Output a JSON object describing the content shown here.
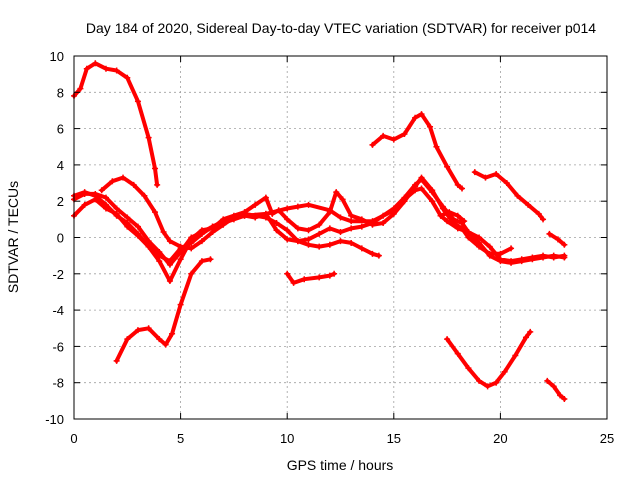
{
  "chart_data": {
    "type": "line",
    "title": "Day 184 of 2020, Sidereal Day-to-day VTEC variation (SDTVAR) for receiver p014",
    "xlabel": "GPS time / hours",
    "ylabel": "SDTVAR / TECUs",
    "xlim": [
      0,
      25
    ],
    "ylim": [
      -10,
      10
    ],
    "xticks": [
      0,
      5,
      10,
      15,
      20,
      25
    ],
    "yticks": [
      -10,
      -8,
      -6,
      -4,
      -2,
      0,
      2,
      4,
      6,
      8,
      10
    ],
    "grid": true,
    "color": "#ff0000",
    "series": [
      {
        "name": "s1",
        "points": [
          [
            0,
            7.8
          ],
          [
            0.3,
            8.2
          ],
          [
            0.6,
            9.3
          ],
          [
            1.0,
            9.6
          ],
          [
            1.5,
            9.3
          ],
          [
            2.0,
            9.2
          ],
          [
            2.5,
            8.8
          ],
          [
            3.0,
            7.5
          ],
          [
            3.5,
            5.5
          ],
          [
            3.8,
            3.8
          ],
          [
            3.9,
            2.9
          ]
        ]
      },
      {
        "name": "s2",
        "points": [
          [
            2.0,
            -6.8
          ],
          [
            2.5,
            -5.6
          ],
          [
            3.0,
            -5.1
          ],
          [
            3.5,
            -5.0
          ],
          [
            4.0,
            -5.6
          ],
          [
            4.3,
            -5.9
          ],
          [
            4.6,
            -5.3
          ],
          [
            5.0,
            -3.7
          ],
          [
            5.5,
            -2.0
          ],
          [
            6.0,
            -1.3
          ],
          [
            6.4,
            -1.2
          ]
        ]
      },
      {
        "name": "s3",
        "points": [
          [
            0,
            1.2
          ],
          [
            0.5,
            1.8
          ],
          [
            1.0,
            2.1
          ],
          [
            1.5,
            1.6
          ],
          [
            2.0,
            1.3
          ],
          [
            2.5,
            0.6
          ],
          [
            3.0,
            0.1
          ],
          [
            3.5,
            -0.5
          ],
          [
            4.0,
            -1.0
          ],
          [
            4.5,
            -1.3
          ],
          [
            5.0,
            -0.6
          ],
          [
            5.5,
            -0.3
          ],
          [
            6.0,
            0.2
          ],
          [
            6.5,
            0.6
          ],
          [
            7.0,
            0.9
          ],
          [
            7.5,
            1.1
          ],
          [
            8.0,
            1.2
          ],
          [
            9.0,
            1.3
          ],
          [
            10.0,
            1.6
          ],
          [
            10.5,
            1.7
          ],
          [
            11.0,
            1.8
          ],
          [
            12.0,
            1.5
          ],
          [
            12.5,
            1.1
          ],
          [
            13.0,
            0.9
          ],
          [
            14.0,
            0.9
          ],
          [
            15.0,
            1.5
          ],
          [
            15.5,
            2.1
          ],
          [
            16.0,
            2.6
          ],
          [
            16.3,
            2.7
          ],
          [
            16.8,
            2.0
          ],
          [
            17.2,
            1.2
          ],
          [
            17.5,
            0.9
          ],
          [
            18.0,
            0.5
          ],
          [
            18.5,
            0.3
          ],
          [
            19.0,
            0.0
          ],
          [
            19.5,
            -0.5
          ],
          [
            20.0,
            -1.2
          ],
          [
            20.5,
            -1.3
          ],
          [
            21.0,
            -1.2
          ],
          [
            21.5,
            -1.1
          ],
          [
            22.0,
            -1.0
          ],
          [
            22.5,
            -1.1
          ],
          [
            23.0,
            -1.0
          ]
        ]
      },
      {
        "name": "s4",
        "points": [
          [
            0,
            2.1
          ],
          [
            0.5,
            2.4
          ],
          [
            1.0,
            2.4
          ],
          [
            1.5,
            2.2
          ],
          [
            2.0,
            1.6
          ],
          [
            2.5,
            1.1
          ],
          [
            3.0,
            0.6
          ],
          [
            3.5,
            -0.2
          ],
          [
            4.0,
            -0.8
          ],
          [
            4.5,
            -1.5
          ],
          [
            5.0,
            -0.8
          ],
          [
            5.5,
            0.0
          ],
          [
            6.0,
            0.3
          ],
          [
            6.5,
            0.6
          ],
          [
            7.0,
            0.8
          ],
          [
            7.5,
            1.0
          ],
          [
            8.0,
            1.2
          ],
          [
            8.5,
            1.1
          ],
          [
            9.0,
            1.3
          ],
          [
            9.5,
            0.4
          ],
          [
            10.0,
            -0.1
          ],
          [
            10.5,
            -0.2
          ],
          [
            11.0,
            -0.1
          ],
          [
            11.5,
            0.2
          ],
          [
            12.0,
            0.5
          ],
          [
            12.5,
            0.3
          ],
          [
            13.0,
            0.5
          ],
          [
            13.5,
            0.6
          ],
          [
            14.0,
            0.8
          ],
          [
            14.5,
            1.2
          ],
          [
            15.0,
            1.6
          ],
          [
            15.5,
            2.2
          ],
          [
            16.0,
            2.9
          ],
          [
            16.3,
            3.2
          ],
          [
            16.8,
            2.5
          ],
          [
            17.3,
            1.7
          ],
          [
            17.8,
            1.0
          ],
          [
            18.2,
            0.8
          ],
          [
            18.5,
            0.3
          ],
          [
            19.0,
            -0.3
          ],
          [
            19.5,
            -1.0
          ],
          [
            20.0,
            -1.3
          ],
          [
            20.5,
            -1.4
          ],
          [
            21.0,
            -1.3
          ],
          [
            21.5,
            -1.2
          ],
          [
            22.0,
            -1.1
          ],
          [
            22.5,
            -1.0
          ],
          [
            23.0,
            -1.1
          ]
        ]
      },
      {
        "name": "s5",
        "points": [
          [
            0,
            2.3
          ],
          [
            0.5,
            2.5
          ],
          [
            1.0,
            2.3
          ],
          [
            1.5,
            1.8
          ],
          [
            2.0,
            1.2
          ],
          [
            2.5,
            0.8
          ],
          [
            3.0,
            0.2
          ],
          [
            3.5,
            -0.5
          ],
          [
            4.0,
            -1.3
          ],
          [
            4.5,
            -2.4
          ],
          [
            5.0,
            -1.2
          ],
          [
            5.5,
            -0.1
          ],
          [
            6.0,
            0.4
          ],
          [
            6.5,
            0.5
          ],
          [
            7.0,
            1.0
          ],
          [
            7.5,
            1.2
          ],
          [
            8.0,
            1.4
          ],
          [
            8.5,
            1.8
          ],
          [
            9.0,
            2.2
          ],
          [
            9.3,
            1.3
          ],
          [
            9.6,
            1.5
          ],
          [
            10.0,
            1.0
          ],
          [
            10.5,
            0.5
          ],
          [
            11.0,
            0.4
          ],
          [
            11.5,
            0.7
          ],
          [
            12.0,
            1.4
          ],
          [
            12.3,
            2.5
          ],
          [
            12.6,
            2.1
          ],
          [
            13.0,
            1.2
          ],
          [
            13.5,
            1.0
          ],
          [
            14.0,
            0.7
          ],
          [
            14.5,
            0.8
          ],
          [
            15.0,
            1.3
          ],
          [
            15.5,
            2.0
          ],
          [
            16.0,
            2.8
          ],
          [
            16.3,
            3.3
          ],
          [
            16.8,
            2.6
          ],
          [
            17.3,
            1.6
          ],
          [
            17.8,
            0.8
          ],
          [
            18.2,
            0.5
          ],
          [
            18.5,
            0.0
          ],
          [
            19.0,
            -0.5
          ],
          [
            19.5,
            -0.9
          ],
          [
            20.0,
            -0.9
          ],
          [
            20.5,
            -0.6
          ]
        ]
      },
      {
        "name": "s6",
        "points": [
          [
            1.3,
            2.6
          ],
          [
            1.8,
            3.1
          ],
          [
            2.3,
            3.3
          ],
          [
            2.8,
            2.9
          ],
          [
            3.3,
            2.3
          ],
          [
            3.8,
            1.4
          ],
          [
            4.2,
            0.3
          ],
          [
            4.5,
            -0.2
          ],
          [
            5.0,
            -0.5
          ],
          [
            5.5,
            -0.6
          ],
          [
            6.0,
            -0.2
          ],
          [
            6.5,
            0.3
          ],
          [
            7.0,
            0.7
          ],
          [
            7.5,
            1.1
          ],
          [
            8.0,
            1.3
          ],
          [
            8.5,
            1.2
          ],
          [
            9.0,
            1.1
          ],
          [
            9.5,
            0.8
          ],
          [
            10.0,
            0.4
          ],
          [
            10.5,
            -0.2
          ],
          [
            11.0,
            -0.4
          ],
          [
            11.5,
            -0.5
          ],
          [
            12.0,
            -0.4
          ],
          [
            12.5,
            -0.2
          ],
          [
            13.0,
            -0.3
          ],
          [
            13.5,
            -0.6
          ],
          [
            14.0,
            -0.9
          ],
          [
            14.3,
            -1.0
          ]
        ]
      },
      {
        "name": "s7",
        "points": [
          [
            10.0,
            -2.0
          ],
          [
            10.3,
            -2.5
          ],
          [
            10.8,
            -2.3
          ],
          [
            11.5,
            -2.2
          ],
          [
            12.0,
            -2.1
          ],
          [
            12.2,
            -2.0
          ]
        ]
      },
      {
        "name": "s8",
        "points": [
          [
            14.0,
            5.1
          ],
          [
            14.5,
            5.6
          ],
          [
            15.0,
            5.4
          ],
          [
            15.5,
            5.7
          ],
          [
            16.0,
            6.6
          ],
          [
            16.3,
            6.8
          ],
          [
            16.7,
            6.1
          ],
          [
            17.0,
            5.0
          ],
          [
            17.5,
            3.9
          ],
          [
            18.0,
            2.9
          ],
          [
            18.2,
            2.7
          ]
        ]
      },
      {
        "name": "s9",
        "points": [
          [
            17.2,
            1.2
          ],
          [
            17.6,
            1.4
          ],
          [
            18.0,
            1.2
          ],
          [
            18.3,
            0.9
          ]
        ]
      },
      {
        "name": "s10",
        "points": [
          [
            18.8,
            3.6
          ],
          [
            19.3,
            3.3
          ],
          [
            19.8,
            3.5
          ],
          [
            20.3,
            3.0
          ],
          [
            20.8,
            2.3
          ],
          [
            21.3,
            1.8
          ],
          [
            21.8,
            1.3
          ],
          [
            22.0,
            1.0
          ]
        ]
      },
      {
        "name": "s11",
        "points": [
          [
            22.3,
            0.2
          ],
          [
            22.7,
            -0.1
          ],
          [
            23.0,
            -0.4
          ]
        ]
      },
      {
        "name": "s12",
        "points": [
          [
            17.5,
            -5.6
          ],
          [
            18.0,
            -6.4
          ],
          [
            18.5,
            -7.2
          ],
          [
            19.0,
            -7.9
          ],
          [
            19.4,
            -8.2
          ],
          [
            19.8,
            -8.0
          ],
          [
            20.2,
            -7.4
          ],
          [
            20.7,
            -6.5
          ],
          [
            21.2,
            -5.5
          ],
          [
            21.4,
            -5.2
          ]
        ]
      },
      {
        "name": "s13",
        "points": [
          [
            22.2,
            -7.9
          ],
          [
            22.5,
            -8.2
          ],
          [
            22.8,
            -8.7
          ],
          [
            23.0,
            -8.9
          ]
        ]
      }
    ]
  }
}
